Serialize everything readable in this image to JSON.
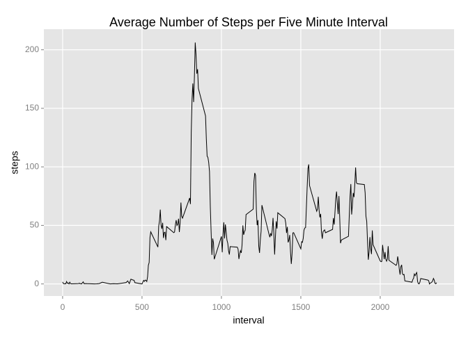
{
  "chart_data": {
    "type": "line",
    "title": "Average Number of Steps per Five Minute Interval",
    "x_label": "interval",
    "y_label": "steps",
    "x": [
      0,
      5,
      10,
      15,
      20,
      25,
      30,
      35,
      40,
      45,
      50,
      55,
      100,
      105,
      110,
      115,
      120,
      125,
      130,
      135,
      145,
      200,
      215,
      230,
      250,
      300,
      320,
      345,
      400,
      410,
      420,
      430,
      440,
      450,
      455,
      500,
      505,
      510,
      515,
      520,
      525,
      530,
      535,
      540,
      545,
      550,
      555,
      600,
      605,
      610,
      615,
      620,
      625,
      630,
      635,
      640,
      645,
      650,
      655,
      700,
      705,
      710,
      715,
      720,
      725,
      730,
      735,
      740,
      745,
      750,
      755,
      800,
      805,
      810,
      815,
      820,
      825,
      830,
      835,
      840,
      845,
      850,
      855,
      900,
      905,
      910,
      915,
      920,
      925,
      930,
      935,
      940,
      945,
      950,
      955,
      1000,
      1005,
      1010,
      1015,
      1020,
      1025,
      1030,
      1035,
      1040,
      1045,
      1050,
      1055,
      1100,
      1105,
      1110,
      1115,
      1120,
      1125,
      1130,
      1135,
      1140,
      1145,
      1150,
      1155,
      1200,
      1205,
      1210,
      1215,
      1220,
      1225,
      1230,
      1235,
      1240,
      1245,
      1250,
      1255,
      1300,
      1305,
      1310,
      1315,
      1320,
      1325,
      1330,
      1335,
      1340,
      1345,
      1350,
      1355,
      1400,
      1405,
      1410,
      1415,
      1420,
      1425,
      1430,
      1435,
      1440,
      1445,
      1450,
      1455,
      1500,
      1505,
      1510,
      1515,
      1520,
      1525,
      1530,
      1535,
      1540,
      1545,
      1550,
      1555,
      1600,
      1605,
      1610,
      1615,
      1620,
      1625,
      1630,
      1635,
      1640,
      1645,
      1650,
      1655,
      1700,
      1705,
      1710,
      1715,
      1720,
      1725,
      1730,
      1735,
      1740,
      1745,
      1750,
      1755,
      1800,
      1805,
      1810,
      1815,
      1820,
      1825,
      1830,
      1835,
      1840,
      1845,
      1850,
      1855,
      1900,
      1905,
      1910,
      1915,
      1920,
      1925,
      1930,
      1935,
      1940,
      1945,
      1950,
      1955,
      2000,
      2005,
      2010,
      2015,
      2020,
      2025,
      2030,
      2035,
      2040,
      2045,
      2050,
      2055,
      2100,
      2105,
      2110,
      2115,
      2120,
      2125,
      2130,
      2135,
      2140,
      2145,
      2150,
      2155,
      2200,
      2205,
      2210,
      2215,
      2220,
      2225,
      2230,
      2235,
      2240,
      2245,
      2250,
      2255,
      2300,
      2305,
      2310,
      2315,
      2320,
      2325,
      2330,
      2335,
      2340,
      2345,
      2350,
      2355
    ],
    "values": [
      1.7,
      0.3,
      0.1,
      0.2,
      0.1,
      2.1,
      0.5,
      0.9,
      0,
      1.5,
      0.3,
      0.1,
      0.3,
      0.7,
      0.2,
      0.3,
      0,
      1.1,
      1.8,
      0.2,
      0.3,
      0,
      0.1,
      0.3,
      1.5,
      0,
      0.2,
      0.1,
      1.2,
      2.6,
      0.3,
      4.1,
      3.5,
      3.1,
      1.1,
      0,
      1.6,
      3,
      2.2,
      3.3,
      3,
      2.1,
      6.1,
      16,
      18.3,
      39.5,
      44.5,
      31.5,
      49.3,
      53.8,
      63.5,
      50,
      47.1,
      52.2,
      39.3,
      44,
      44.2,
      37.4,
      49,
      43.8,
      44.4,
      50.5,
      54.5,
      49.9,
      51,
      55.7,
      44.3,
      52.3,
      69.5,
      57.8,
      56.2,
      73.4,
      68.2,
      129.4,
      157.5,
      171.2,
      155.4,
      177.3,
      206.2,
      195.9,
      179.6,
      183.4,
      167,
      143.5,
      124,
      109.1,
      108.1,
      103.7,
      96,
      66.2,
      45.2,
      24.8,
      38.8,
      35,
      21.1,
      40.6,
      27,
      42.4,
      52.7,
      38.9,
      50.8,
      44.3,
      37.4,
      34.7,
      28.3,
      25.1,
      31.9,
      31.4,
      29.7,
      21.3,
      25.5,
      28.4,
      26.5,
      33.4,
      50,
      42,
      44.6,
      46,
      59.2,
      63.9,
      87.7,
      94.8,
      92.8,
      63.4,
      50.2,
      54.5,
      32.4,
      26.5,
      37.7,
      45.1,
      67.3,
      42.3,
      39.9,
      43.3,
      41,
      46.2,
      56.4,
      42.8,
      25.1,
      40,
      53.5,
      47.3,
      60.8,
      55.8,
      52,
      43.6,
      48.7,
      35.5,
      37.5,
      41.8,
      27.5,
      17.1,
      26.1,
      43.6,
      43.8,
      30,
      36.1,
      35.5,
      38.8,
      46,
      47.8,
      48.1,
      65.3,
      82.9,
      98.7,
      102.1,
      84,
      62.1,
      64.1,
      74.5,
      63.2,
      56.9,
      59.8,
      43.9,
      38.6,
      44.7,
      45.5,
      46.2,
      43.7,
      46.6,
      56.3,
      50.7,
      61.2,
      72.7,
      78.9,
      68.9,
      59.7,
      75.1,
      56.5,
      34.8,
      37.5,
      40.7,
      58,
      74.7,
      85.3,
      59.3,
      67.8,
      77.7,
      74.2,
      85.3,
      99.5,
      86.6,
      85.6,
      84.9,
      77.8,
      58,
      53.4,
      36.3,
      20.7,
      27.4,
      40,
      30.2,
      25.5,
      45.7,
      33.5,
      19.6,
      19,
      19.3,
      33.3,
      26.8,
      21.2,
      27.3,
      21.3,
      19.5,
      21.3,
      32.3,
      20.2,
      15.9,
      17.2,
      23.5,
      19.2,
      12.5,
      8,
      14.7,
      16.3,
      8.7,
      7.8,
      8.1,
      2.6,
      1.5,
      3.7,
      4.8,
      8.5,
      7.1,
      8.7,
      9.8,
      2.2,
      0.3,
      0.1,
      1.6,
      4.6,
      3.3,
      2.8,
      0,
      0.8,
      1,
      1.6,
      2.6,
      4.7,
      3.3,
      0.6,
      0.2,
      1.1
    ],
    "color": "#000000",
    "xlim": [
      -118,
      2465
    ],
    "xticks": [
      0,
      500,
      1000,
      1500,
      2000
    ],
    "ylim": [
      -10.3,
      217.6
    ],
    "yticks": [
      0,
      50,
      100,
      150,
      200
    ],
    "grid": true
  }
}
